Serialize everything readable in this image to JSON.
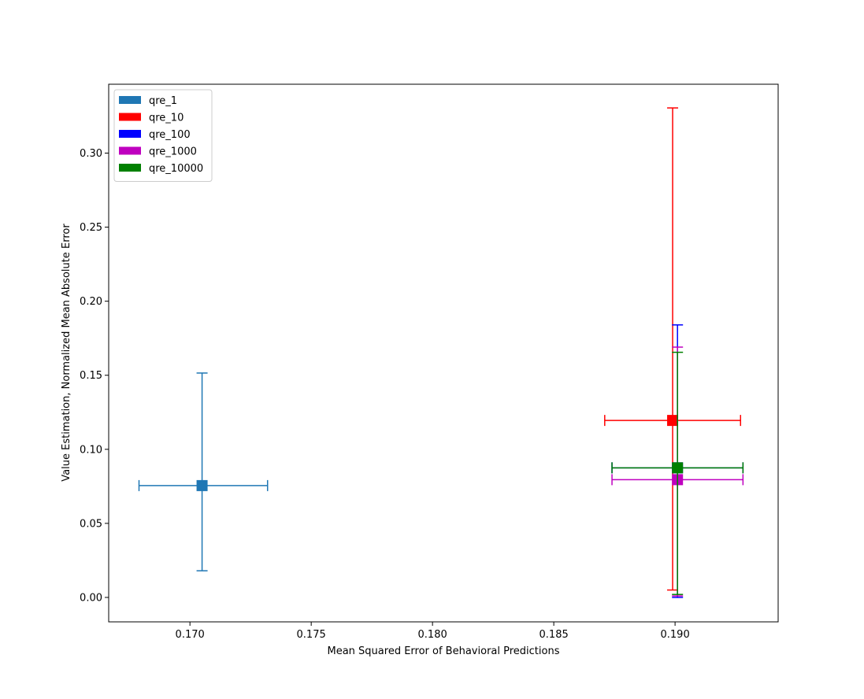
{
  "chart_data": {
    "type": "scatter",
    "title": "",
    "xlabel": "Mean Squared Error of Behavioral Predictions",
    "ylabel": "Value Estimation, Normalized Mean Absolute Error",
    "xlim": [
      0.16665,
      0.19425
    ],
    "ylim": [
      -0.0165,
      0.3465
    ],
    "xticks": [
      0.17,
      0.175,
      0.18,
      0.185,
      0.19
    ],
    "xtick_labels": [
      "0.170",
      "0.175",
      "0.180",
      "0.185",
      "0.190"
    ],
    "yticks": [
      0.0,
      0.05,
      0.1,
      0.15,
      0.2,
      0.25,
      0.3
    ],
    "ytick_labels": [
      "0.00",
      "0.05",
      "0.10",
      "0.15",
      "0.20",
      "0.25",
      "0.30"
    ],
    "grid": false,
    "legend_position": "top-left",
    "series": [
      {
        "name": "qre_1",
        "color": "#1f77b4",
        "x": 0.1705,
        "y": 0.0755,
        "xerr_low": 0.1679,
        "xerr_high": 0.1732,
        "yerr_low": 0.018,
        "yerr_high": 0.1515
      },
      {
        "name": "qre_10",
        "color": "#ff0000",
        "x": 0.1899,
        "y": 0.1195,
        "xerr_low": 0.1871,
        "xerr_high": 0.1927,
        "yerr_low": 0.005,
        "yerr_high": 0.3305
      },
      {
        "name": "qre_100",
        "color": "#0000ff",
        "x": 0.1901,
        "y": 0.0875,
        "xerr_low": 0.1874,
        "xerr_high": 0.1928,
        "yerr_low": 0.0,
        "yerr_high": 0.184
      },
      {
        "name": "qre_1000",
        "color": "#bf00bf",
        "x": 0.1901,
        "y": 0.0795,
        "xerr_low": 0.1874,
        "xerr_high": 0.1928,
        "yerr_low": 0.001,
        "yerr_high": 0.169
      },
      {
        "name": "qre_10000",
        "color": "#008000",
        "x": 0.1901,
        "y": 0.0875,
        "xerr_low": 0.1874,
        "xerr_high": 0.1928,
        "yerr_low": 0.002,
        "yerr_high": 0.1655
      }
    ]
  }
}
